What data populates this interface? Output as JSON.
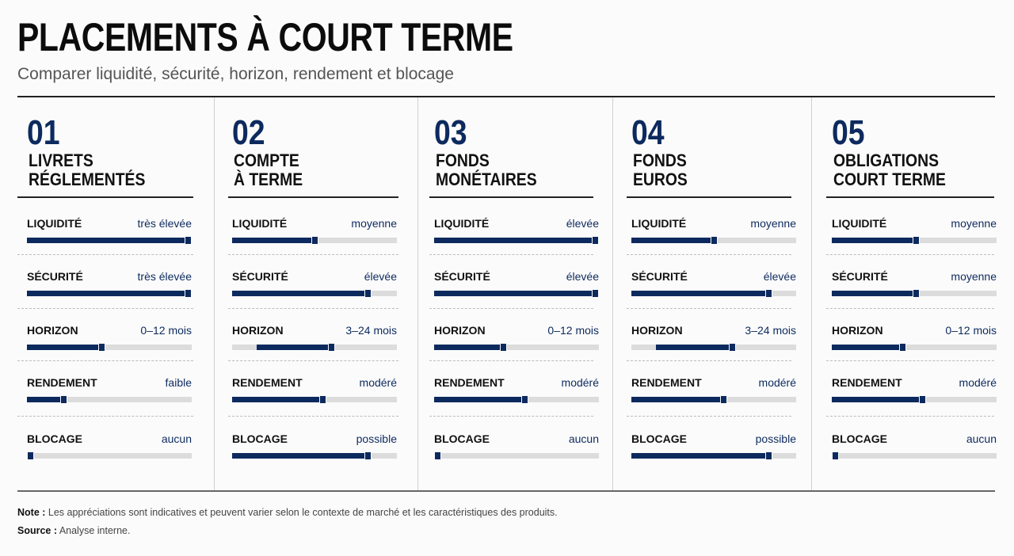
{
  "header": {
    "title": "PLACEMENTS À COURT TERME",
    "subtitle": "Comparer liquidité, sécurité, horizon, rendement et blocage"
  },
  "footer": {
    "note_label": "Note :",
    "note_text": "Les appréciations sont indicatives et peuvent varier selon le contexte de marché et les caractéristiques des produits.",
    "source_label": "Source :",
    "source_text": "Analyse interne."
  },
  "colors": {
    "accent": "#0d2a5e",
    "track": "#dcdcdc"
  },
  "chart_data": {
    "type": "table",
    "criteria": [
      "LIQUIDITÉ",
      "SÉCURITÉ",
      "HORIZON",
      "RENDEMENT",
      "BLOCAGE"
    ],
    "cards": [
      {
        "number": "01",
        "name_lines": [
          "LIVRETS",
          "RÉGLEMENTÉS"
        ],
        "rows": [
          {
            "value": "très élevée",
            "start": 0,
            "level": 1.0
          },
          {
            "value": "très élevée",
            "start": 0,
            "level": 1.0
          },
          {
            "value": "0–12 mois",
            "start": 0,
            "level": 0.45
          },
          {
            "value": "faible",
            "start": 0,
            "level": 0.22
          },
          {
            "value": "aucun",
            "start": 0,
            "level": 0.02
          }
        ]
      },
      {
        "number": "02",
        "name_lines": [
          "COMPTE",
          "À TERME"
        ],
        "rows": [
          {
            "value": "moyenne",
            "start": 0,
            "level": 0.5
          },
          {
            "value": "élevée",
            "start": 0,
            "level": 0.82
          },
          {
            "value": "3–24 mois",
            "start": 0.15,
            "level": 0.6
          },
          {
            "value": "modéré",
            "start": 0,
            "level": 0.55
          },
          {
            "value": "possible",
            "start": 0,
            "level": 0.82
          }
        ]
      },
      {
        "number": "03",
        "name_lines": [
          "FONDS",
          "MONÉTAIRES"
        ],
        "rows": [
          {
            "value": "élevée",
            "start": 0,
            "level": 1.0
          },
          {
            "value": "élevée",
            "start": 0,
            "level": 1.0
          },
          {
            "value": "0–12 mois",
            "start": 0,
            "level": 0.42
          },
          {
            "value": "modéré",
            "start": 0,
            "level": 0.55
          },
          {
            "value": "aucun",
            "start": 0,
            "level": 0.02
          }
        ]
      },
      {
        "number": "04",
        "name_lines": [
          "FONDS",
          "EUROS"
        ],
        "rows": [
          {
            "value": "moyenne",
            "start": 0,
            "level": 0.5
          },
          {
            "value": "élevée",
            "start": 0,
            "level": 0.83
          },
          {
            "value": "3–24 mois",
            "start": 0.15,
            "level": 0.61
          },
          {
            "value": "modéré",
            "start": 0,
            "level": 0.56
          },
          {
            "value": "possible",
            "start": 0,
            "level": 0.83
          }
        ]
      },
      {
        "number": "05",
        "name_lines": [
          "OBLIGATIONS",
          "COURT TERME"
        ],
        "rows": [
          {
            "value": "moyenne",
            "start": 0,
            "level": 0.51
          },
          {
            "value": "moyenne",
            "start": 0,
            "level": 0.51
          },
          {
            "value": "0–12 mois",
            "start": 0,
            "level": 0.43
          },
          {
            "value": "modéré",
            "start": 0,
            "level": 0.55
          },
          {
            "value": "aucun",
            "start": 0,
            "level": 0.02
          }
        ]
      }
    ]
  }
}
